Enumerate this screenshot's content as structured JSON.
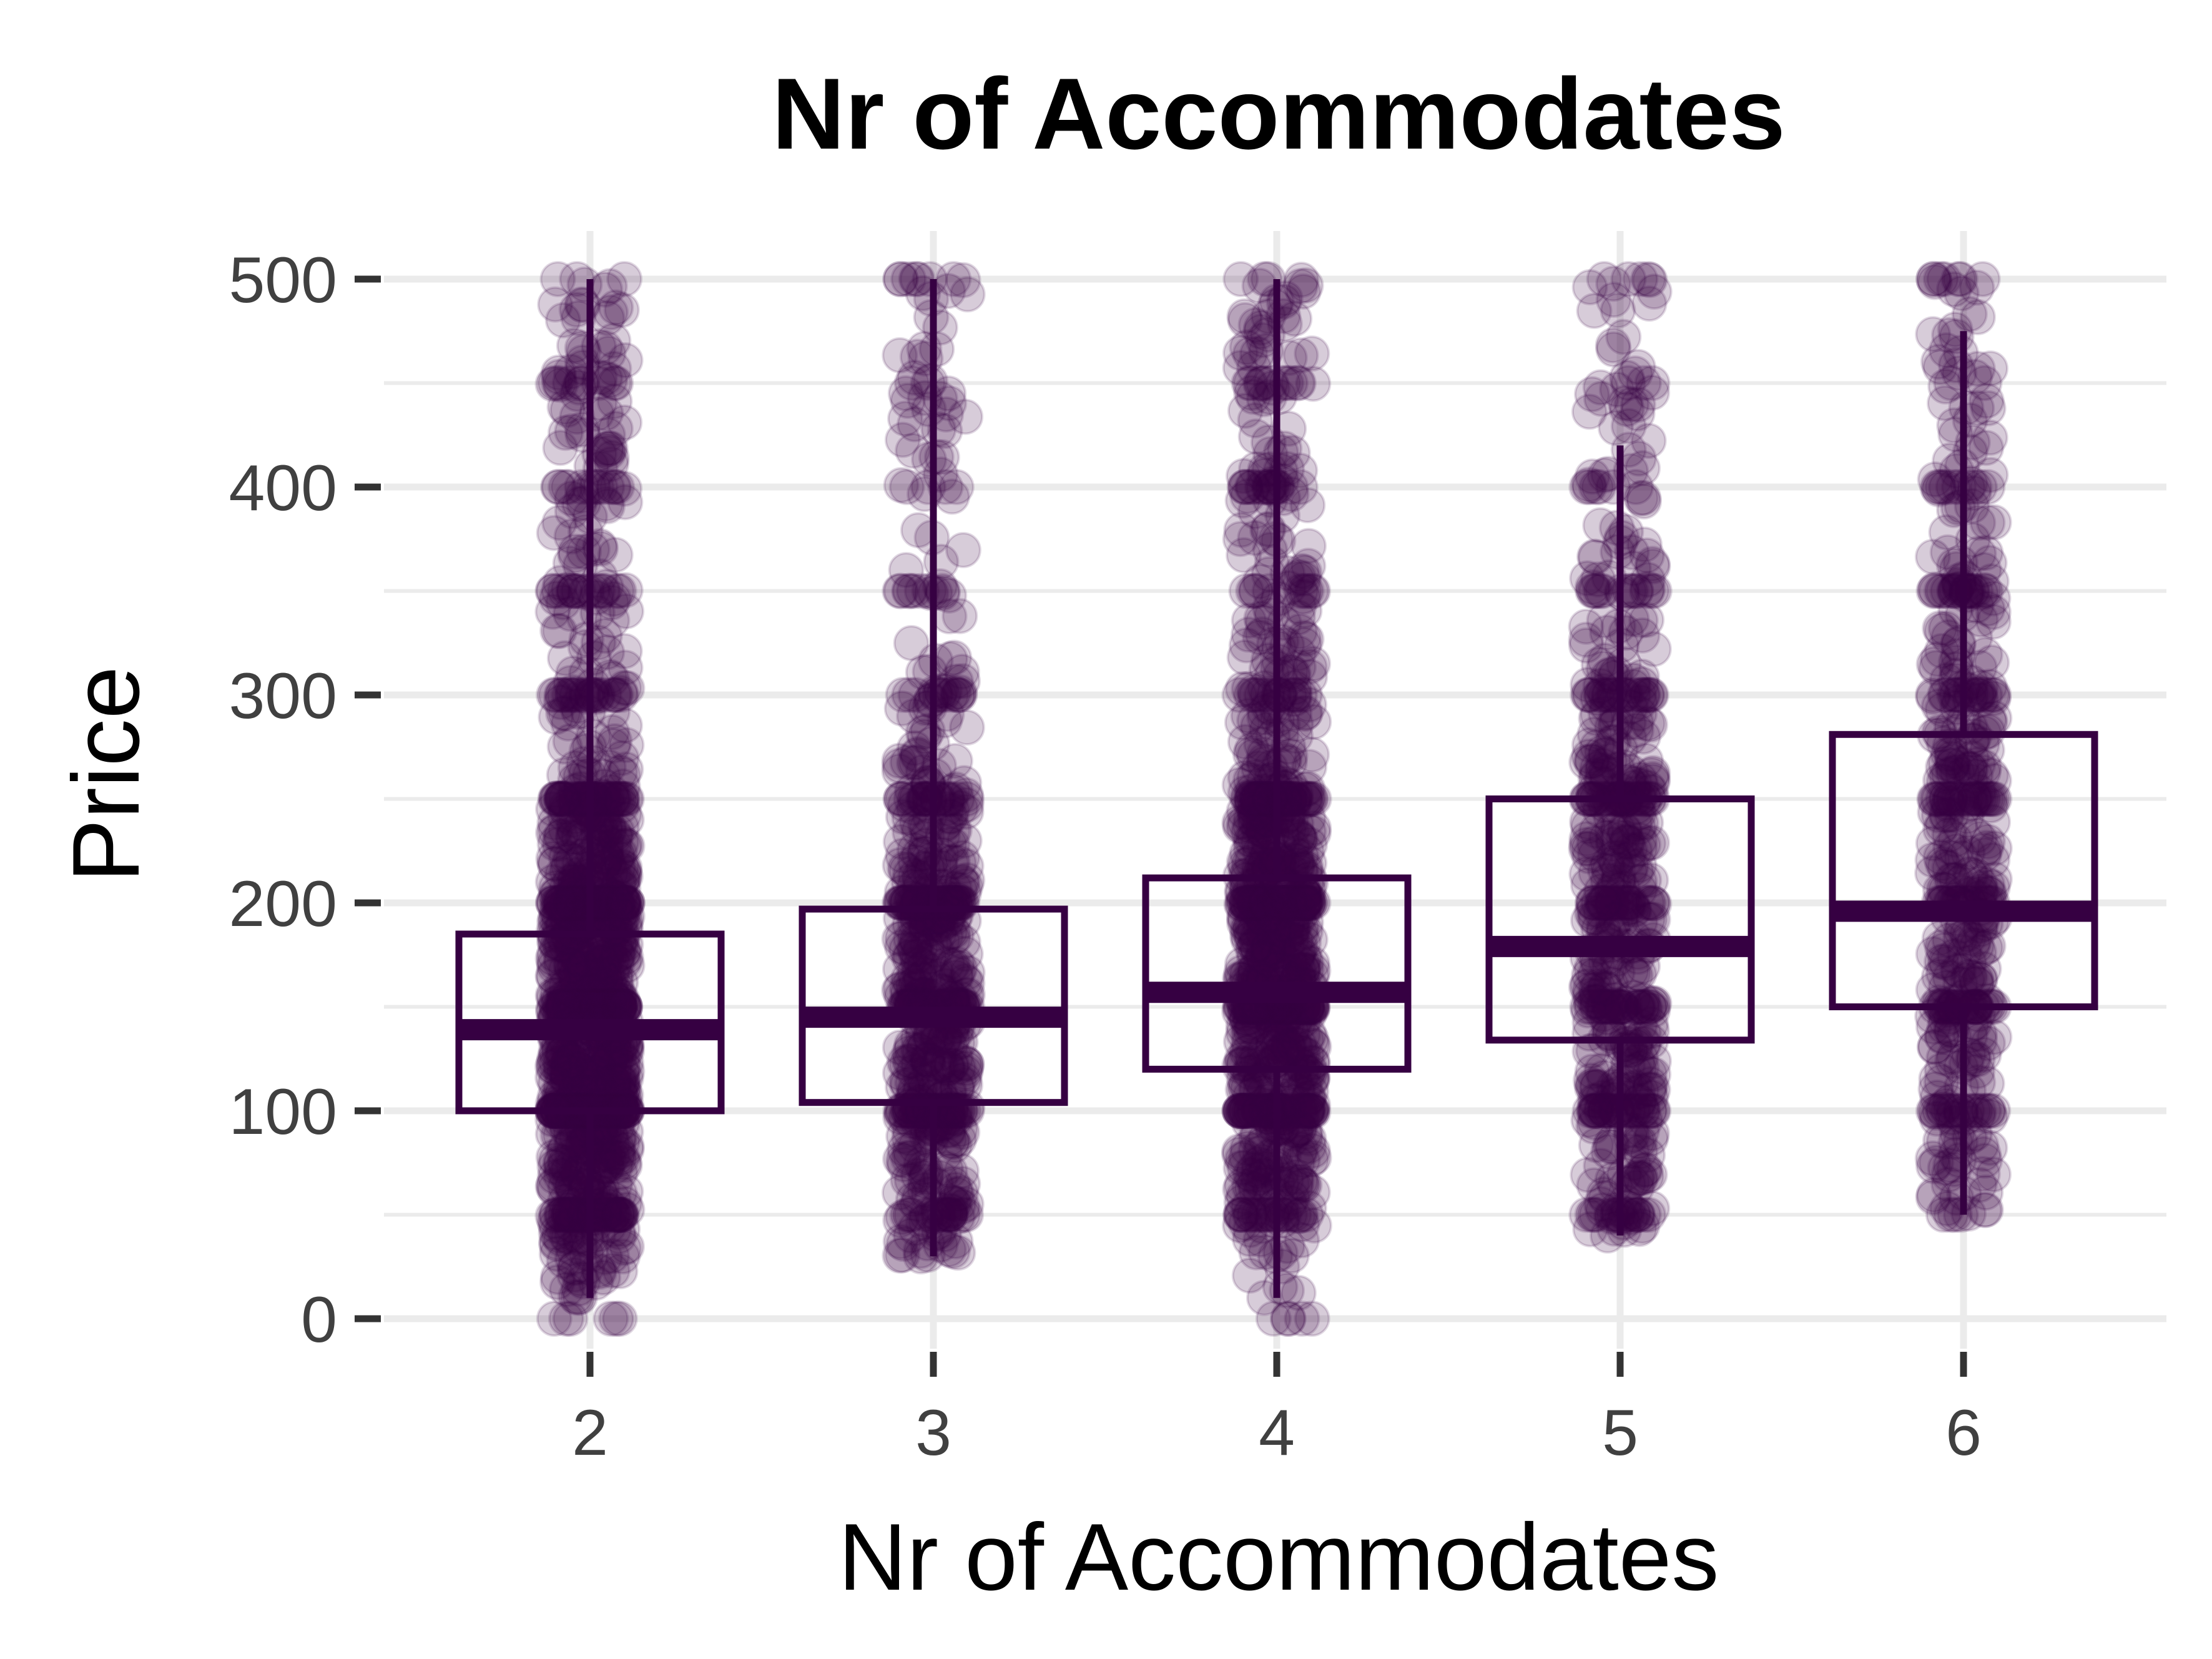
{
  "chart_data": {
    "type": "boxplot",
    "title": "Nr of Accommodates",
    "xlabel": "Nr of Accommodates",
    "ylabel": "Price",
    "categories": [
      "2",
      "3",
      "4",
      "5",
      "6"
    ],
    "yticks": [
      0,
      100,
      200,
      300,
      400,
      500
    ],
    "ylim": [
      -10,
      525
    ],
    "grid": true,
    "color": "#360042",
    "point_alpha": 0.2,
    "boxes": [
      {
        "category": "2",
        "q1": 100,
        "median": 139,
        "q3": 185,
        "whisker_low": 10,
        "whisker_high": 500,
        "min": 10,
        "max": 500
      },
      {
        "category": "3",
        "q1": 104,
        "median": 145,
        "q3": 197,
        "whisker_low": 30,
        "whisker_high": 500,
        "min": 30,
        "max": 500
      },
      {
        "category": "4",
        "q1": 120,
        "median": 157,
        "q3": 212,
        "whisker_low": 10,
        "whisker_high": 500,
        "min": 10,
        "max": 500
      },
      {
        "category": "5",
        "q1": 134,
        "median": 179,
        "q3": 250,
        "whisker_low": 40,
        "whisker_high": 420,
        "min": 40,
        "max": 500
      },
      {
        "category": "6",
        "q1": 150,
        "median": 196,
        "q3": 281,
        "whisker_low": 50,
        "whisker_high": 475,
        "min": 50,
        "max": 500
      }
    ]
  }
}
